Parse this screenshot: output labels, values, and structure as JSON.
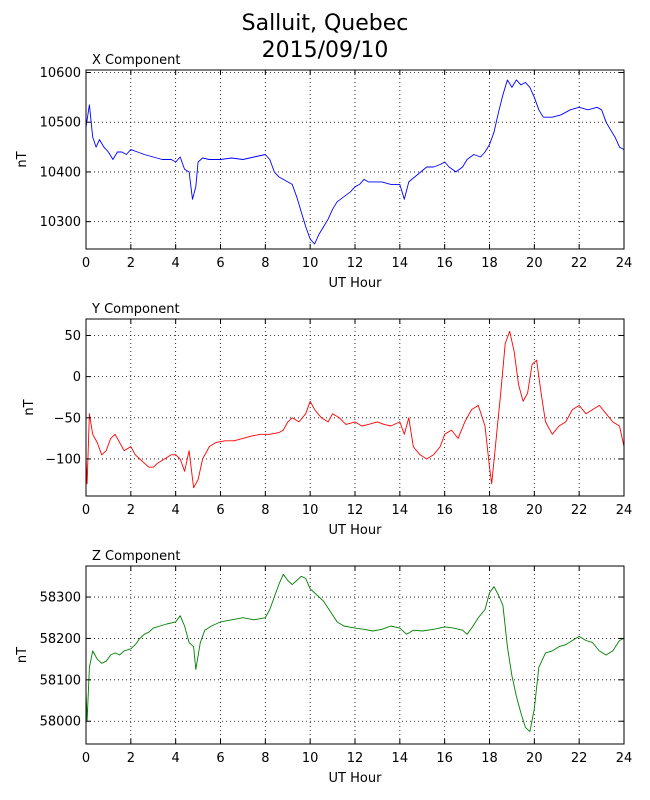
{
  "figure": {
    "title_line1": "Salluit, Quebec",
    "title_line2": "2015/09/10",
    "background": "#ffffff"
  },
  "chart_data": [
    {
      "type": "line",
      "title": "X Component",
      "xlabel": "UT Hour",
      "ylabel": "nT",
      "color": "#0000ff",
      "xlim": [
        0,
        24
      ],
      "ylim": [
        10245,
        10605
      ],
      "xticks": [
        0,
        2,
        4,
        6,
        8,
        10,
        12,
        14,
        16,
        18,
        20,
        22,
        24
      ],
      "yticks": [
        10300,
        10400,
        10500,
        10600
      ],
      "grid": true,
      "points": [
        [
          0.0,
          10490
        ],
        [
          0.15,
          10535
        ],
        [
          0.3,
          10470
        ],
        [
          0.45,
          10450
        ],
        [
          0.6,
          10465
        ],
        [
          0.8,
          10450
        ],
        [
          1.0,
          10440
        ],
        [
          1.2,
          10425
        ],
        [
          1.4,
          10440
        ],
        [
          1.6,
          10440
        ],
        [
          1.8,
          10435
        ],
        [
          2.0,
          10445
        ],
        [
          2.3,
          10440
        ],
        [
          2.6,
          10435
        ],
        [
          3.0,
          10430
        ],
        [
          3.4,
          10425
        ],
        [
          3.8,
          10425
        ],
        [
          4.0,
          10420
        ],
        [
          4.2,
          10430
        ],
        [
          4.4,
          10405
        ],
        [
          4.6,
          10400
        ],
        [
          4.75,
          10345
        ],
        [
          4.9,
          10370
        ],
        [
          5.0,
          10420
        ],
        [
          5.2,
          10428
        ],
        [
          5.5,
          10425
        ],
        [
          6.0,
          10425
        ],
        [
          6.5,
          10428
        ],
        [
          7.0,
          10425
        ],
        [
          7.5,
          10430
        ],
        [
          8.0,
          10435
        ],
        [
          8.2,
          10425
        ],
        [
          8.4,
          10400
        ],
        [
          8.6,
          10390
        ],
        [
          8.8,
          10385
        ],
        [
          9.0,
          10380
        ],
        [
          9.2,
          10375
        ],
        [
          9.4,
          10350
        ],
        [
          9.6,
          10320
        ],
        [
          9.8,
          10290
        ],
        [
          10.0,
          10265
        ],
        [
          10.2,
          10255
        ],
        [
          10.4,
          10275
        ],
        [
          10.6,
          10290
        ],
        [
          10.8,
          10305
        ],
        [
          11.0,
          10325
        ],
        [
          11.2,
          10340
        ],
        [
          11.5,
          10350
        ],
        [
          11.8,
          10360
        ],
        [
          12.0,
          10370
        ],
        [
          12.2,
          10375
        ],
        [
          12.4,
          10385
        ],
        [
          12.6,
          10380
        ],
        [
          12.9,
          10380
        ],
        [
          13.2,
          10380
        ],
        [
          13.6,
          10375
        ],
        [
          14.0,
          10375
        ],
        [
          14.2,
          10345
        ],
        [
          14.4,
          10380
        ],
        [
          14.8,
          10395
        ],
        [
          15.2,
          10410
        ],
        [
          15.5,
          10410
        ],
        [
          15.8,
          10415
        ],
        [
          16.0,
          10420
        ],
        [
          16.2,
          10410
        ],
        [
          16.5,
          10400
        ],
        [
          16.8,
          10410
        ],
        [
          17.0,
          10425
        ],
        [
          17.3,
          10435
        ],
        [
          17.6,
          10430
        ],
        [
          17.8,
          10440
        ],
        [
          18.0,
          10455
        ],
        [
          18.2,
          10480
        ],
        [
          18.4,
          10520
        ],
        [
          18.6,
          10555
        ],
        [
          18.8,
          10585
        ],
        [
          19.0,
          10570
        ],
        [
          19.2,
          10585
        ],
        [
          19.4,
          10575
        ],
        [
          19.6,
          10580
        ],
        [
          19.8,
          10570
        ],
        [
          20.0,
          10550
        ],
        [
          20.2,
          10525
        ],
        [
          20.4,
          10510
        ],
        [
          20.8,
          10510
        ],
        [
          21.2,
          10515
        ],
        [
          21.6,
          10525
        ],
        [
          22.0,
          10530
        ],
        [
          22.4,
          10525
        ],
        [
          22.8,
          10530
        ],
        [
          23.0,
          10525
        ],
        [
          23.2,
          10500
        ],
        [
          23.4,
          10485
        ],
        [
          23.6,
          10470
        ],
        [
          23.8,
          10450
        ],
        [
          24.0,
          10445
        ]
      ]
    },
    {
      "type": "line",
      "title": "Y Component",
      "xlabel": "UT Hour",
      "ylabel": "nT",
      "color": "#ff0000",
      "xlim": [
        0,
        24
      ],
      "ylim": [
        -145,
        70
      ],
      "xticks": [
        0,
        2,
        4,
        6,
        8,
        10,
        12,
        14,
        16,
        18,
        20,
        22,
        24
      ],
      "yticks": [
        -100,
        -50,
        0,
        50
      ],
      "grid": true,
      "points": [
        [
          0.0,
          -100
        ],
        [
          0.05,
          -130
        ],
        [
          0.15,
          -45
        ],
        [
          0.3,
          -70
        ],
        [
          0.5,
          -80
        ],
        [
          0.7,
          -95
        ],
        [
          0.9,
          -90
        ],
        [
          1.1,
          -75
        ],
        [
          1.3,
          -70
        ],
        [
          1.5,
          -80
        ],
        [
          1.7,
          -90
        ],
        [
          2.0,
          -85
        ],
        [
          2.2,
          -95
        ],
        [
          2.4,
          -100
        ],
        [
          2.6,
          -105
        ],
        [
          2.8,
          -110
        ],
        [
          3.0,
          -110
        ],
        [
          3.2,
          -105
        ],
        [
          3.5,
          -100
        ],
        [
          3.8,
          -95
        ],
        [
          4.0,
          -95
        ],
        [
          4.2,
          -100
        ],
        [
          4.4,
          -115
        ],
        [
          4.6,
          -90
        ],
        [
          4.8,
          -135
        ],
        [
          5.0,
          -125
        ],
        [
          5.2,
          -100
        ],
        [
          5.5,
          -85
        ],
        [
          5.8,
          -80
        ],
        [
          6.2,
          -78
        ],
        [
          6.6,
          -78
        ],
        [
          7.0,
          -75
        ],
        [
          7.4,
          -72
        ],
        [
          7.8,
          -70
        ],
        [
          8.2,
          -70
        ],
        [
          8.6,
          -68
        ],
        [
          8.8,
          -65
        ],
        [
          9.0,
          -55
        ],
        [
          9.2,
          -50
        ],
        [
          9.5,
          -55
        ],
        [
          9.8,
          -45
        ],
        [
          10.0,
          -30
        ],
        [
          10.2,
          -40
        ],
        [
          10.5,
          -50
        ],
        [
          10.8,
          -55
        ],
        [
          11.0,
          -45
        ],
        [
          11.3,
          -50
        ],
        [
          11.6,
          -58
        ],
        [
          12.0,
          -55
        ],
        [
          12.3,
          -60
        ],
        [
          12.6,
          -58
        ],
        [
          13.0,
          -55
        ],
        [
          13.3,
          -58
        ],
        [
          13.6,
          -60
        ],
        [
          14.0,
          -55
        ],
        [
          14.2,
          -70
        ],
        [
          14.4,
          -50
        ],
        [
          14.6,
          -85
        ],
        [
          14.9,
          -95
        ],
        [
          15.2,
          -100
        ],
        [
          15.5,
          -95
        ],
        [
          15.8,
          -85
        ],
        [
          16.0,
          -70
        ],
        [
          16.3,
          -65
        ],
        [
          16.6,
          -75
        ],
        [
          16.9,
          -55
        ],
        [
          17.2,
          -40
        ],
        [
          17.5,
          -35
        ],
        [
          17.8,
          -60
        ],
        [
          18.0,
          -110
        ],
        [
          18.1,
          -130
        ],
        [
          18.3,
          -75
        ],
        [
          18.5,
          -20
        ],
        [
          18.7,
          40
        ],
        [
          18.9,
          55
        ],
        [
          19.1,
          30
        ],
        [
          19.3,
          -10
        ],
        [
          19.5,
          -30
        ],
        [
          19.7,
          -20
        ],
        [
          19.9,
          15
        ],
        [
          20.1,
          20
        ],
        [
          20.3,
          -20
        ],
        [
          20.5,
          -55
        ],
        [
          20.8,
          -70
        ],
        [
          21.1,
          -60
        ],
        [
          21.4,
          -55
        ],
        [
          21.7,
          -40
        ],
        [
          22.0,
          -35
        ],
        [
          22.3,
          -45
        ],
        [
          22.6,
          -40
        ],
        [
          22.9,
          -35
        ],
        [
          23.2,
          -45
        ],
        [
          23.5,
          -55
        ],
        [
          23.8,
          -60
        ],
        [
          24.0,
          -85
        ]
      ]
    },
    {
      "type": "line",
      "title": "Z Component",
      "xlabel": "UT Hour",
      "ylabel": "nT",
      "color": "#008000",
      "xlim": [
        0,
        24
      ],
      "ylim": [
        57945,
        58375
      ],
      "xticks": [
        0,
        2,
        4,
        6,
        8,
        10,
        12,
        14,
        16,
        18,
        20,
        22,
        24
      ],
      "yticks": [
        58000,
        58100,
        58200,
        58300
      ],
      "grid": true,
      "points": [
        [
          0.0,
          58070
        ],
        [
          0.05,
          58000
        ],
        [
          0.15,
          58130
        ],
        [
          0.3,
          58170
        ],
        [
          0.5,
          58150
        ],
        [
          0.7,
          58140
        ],
        [
          0.9,
          58145
        ],
        [
          1.1,
          58160
        ],
        [
          1.3,
          58165
        ],
        [
          1.5,
          58160
        ],
        [
          1.7,
          58170
        ],
        [
          2.0,
          58175
        ],
        [
          2.2,
          58185
        ],
        [
          2.4,
          58200
        ],
        [
          2.6,
          58210
        ],
        [
          2.8,
          58215
        ],
        [
          3.0,
          58225
        ],
        [
          3.3,
          58230
        ],
        [
          3.6,
          58235
        ],
        [
          4.0,
          58240
        ],
        [
          4.2,
          58255
        ],
        [
          4.4,
          58230
        ],
        [
          4.6,
          58190
        ],
        [
          4.8,
          58180
        ],
        [
          4.9,
          58125
        ],
        [
          5.1,
          58190
        ],
        [
          5.3,
          58220
        ],
        [
          5.6,
          58230
        ],
        [
          6.0,
          58240
        ],
        [
          6.5,
          58245
        ],
        [
          7.0,
          58250
        ],
        [
          7.5,
          58245
        ],
        [
          8.0,
          58250
        ],
        [
          8.2,
          58270
        ],
        [
          8.4,
          58300
        ],
        [
          8.6,
          58330
        ],
        [
          8.8,
          58355
        ],
        [
          9.0,
          58340
        ],
        [
          9.2,
          58330
        ],
        [
          9.4,
          58340
        ],
        [
          9.6,
          58350
        ],
        [
          9.8,
          58345
        ],
        [
          10.0,
          58320
        ],
        [
          10.3,
          58305
        ],
        [
          10.6,
          58290
        ],
        [
          10.9,
          58265
        ],
        [
          11.2,
          58240
        ],
        [
          11.5,
          58230
        ],
        [
          12.0,
          58225
        ],
        [
          12.4,
          58222
        ],
        [
          12.8,
          58218
        ],
        [
          13.2,
          58222
        ],
        [
          13.6,
          58230
        ],
        [
          14.0,
          58225
        ],
        [
          14.3,
          58210
        ],
        [
          14.6,
          58220
        ],
        [
          15.0,
          58218
        ],
        [
          15.5,
          58222
        ],
        [
          16.0,
          58228
        ],
        [
          16.4,
          58225
        ],
        [
          16.8,
          58220
        ],
        [
          17.0,
          58210
        ],
        [
          17.2,
          58225
        ],
        [
          17.5,
          58250
        ],
        [
          17.8,
          58270
        ],
        [
          18.0,
          58310
        ],
        [
          18.2,
          58325
        ],
        [
          18.4,
          58305
        ],
        [
          18.6,
          58280
        ],
        [
          18.8,
          58180
        ],
        [
          19.0,
          58110
        ],
        [
          19.2,
          58060
        ],
        [
          19.4,
          58020
        ],
        [
          19.6,
          57985
        ],
        [
          19.8,
          57975
        ],
        [
          20.0,
          58030
        ],
        [
          20.2,
          58130
        ],
        [
          20.5,
          58165
        ],
        [
          20.8,
          58170
        ],
        [
          21.1,
          58180
        ],
        [
          21.4,
          58185
        ],
        [
          21.7,
          58195
        ],
        [
          22.0,
          58205
        ],
        [
          22.3,
          58195
        ],
        [
          22.6,
          58190
        ],
        [
          22.9,
          58170
        ],
        [
          23.2,
          58160
        ],
        [
          23.5,
          58170
        ],
        [
          23.8,
          58195
        ],
        [
          24.0,
          58200
        ]
      ]
    }
  ]
}
